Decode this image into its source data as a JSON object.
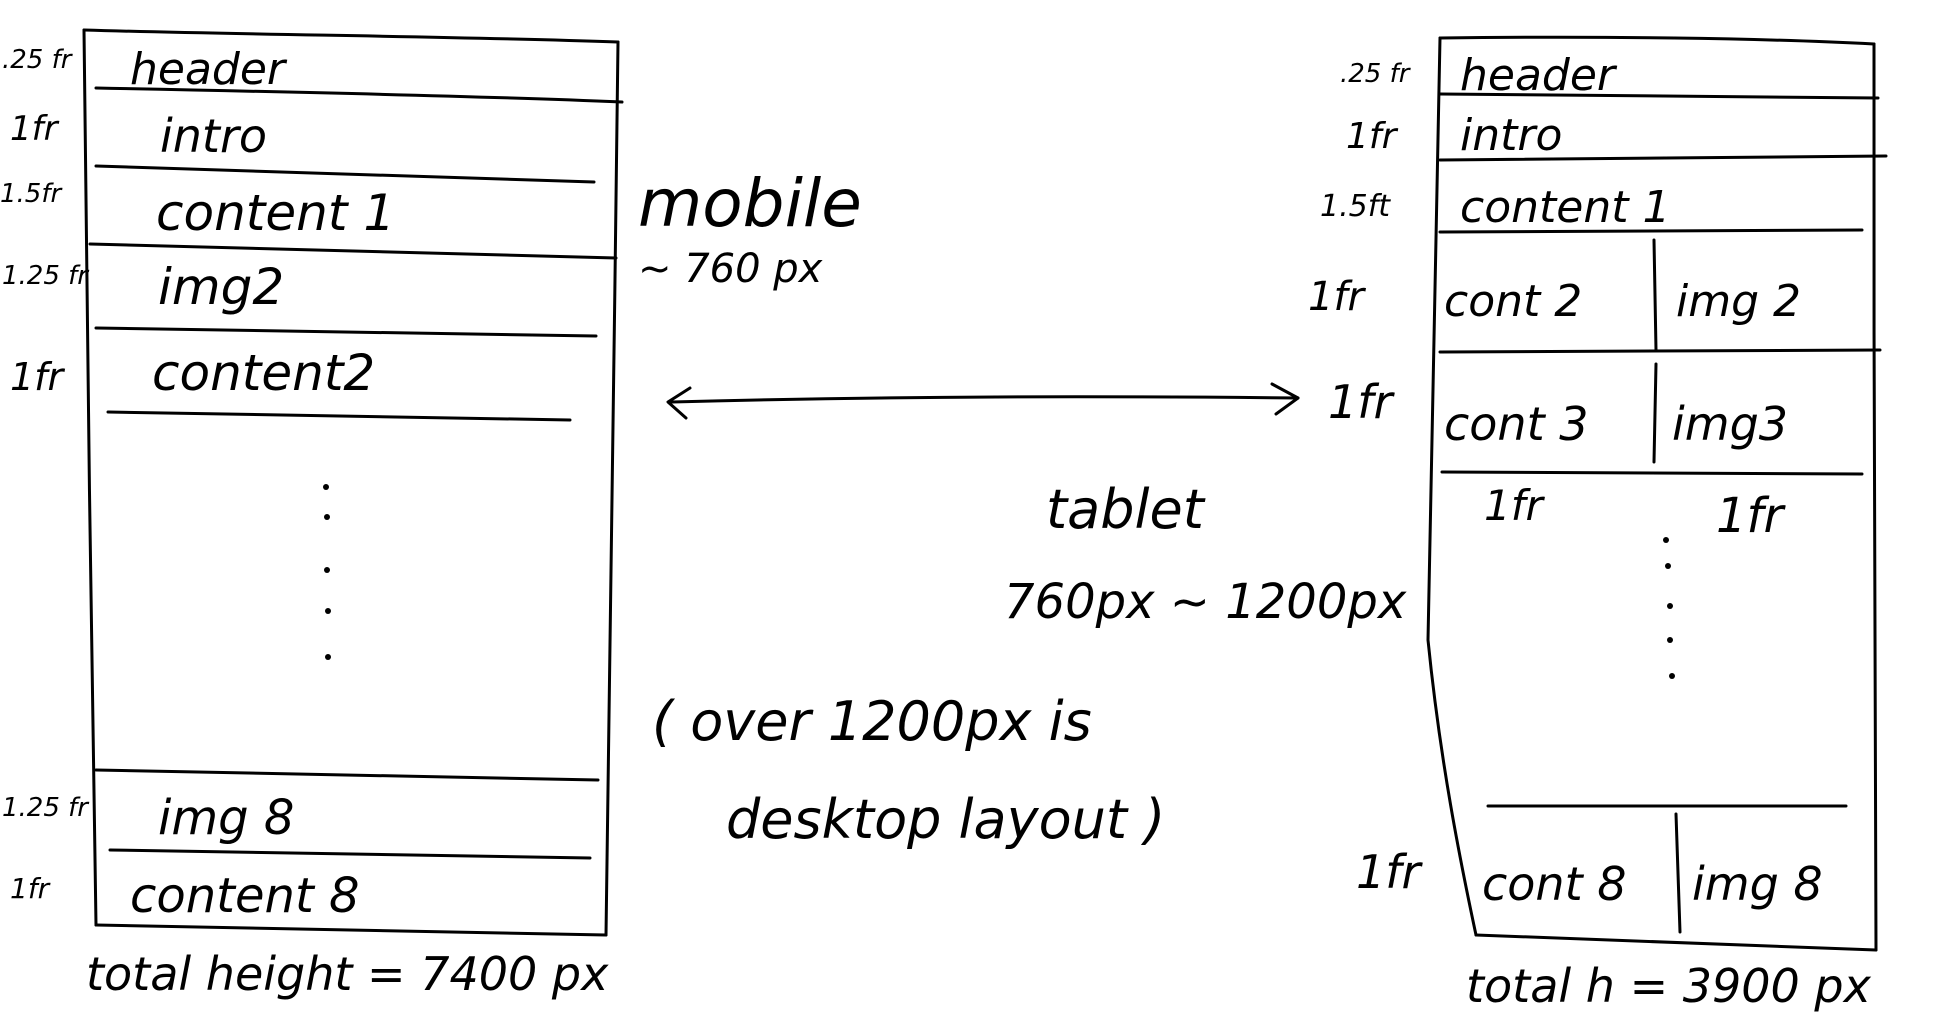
{
  "mobile": {
    "rows": [
      {
        "fr": ".25 fr",
        "label": "header"
      },
      {
        "fr": "1fr",
        "label": "intro"
      },
      {
        "fr": "1.5fr",
        "label": "content 1"
      },
      {
        "fr": "1.25 fr",
        "label": "img2"
      },
      {
        "fr": "1fr",
        "label": "content2"
      },
      {
        "fr": "1.25 fr",
        "label": "img 8"
      },
      {
        "fr": "1fr",
        "label": "content 8"
      }
    ],
    "title": "mobile",
    "width_note": "~ 760 px",
    "total": "total height = 7400 px"
  },
  "tablet": {
    "rows": [
      {
        "fr": ".25 fr",
        "label": "header"
      },
      {
        "fr": "1fr",
        "label": "intro"
      },
      {
        "fr": "1.5ft",
        "label": "content 1"
      },
      {
        "fr": "1fr",
        "left": "cont 2",
        "right": "img 2"
      },
      {
        "fr": "1fr",
        "left": "cont 3",
        "right": "img3"
      },
      {
        "fr": "1fr",
        "left": "cont 8",
        "right": "img 8"
      }
    ],
    "col_fr_left": "1fr",
    "col_fr_right": "1fr",
    "title": "tablet",
    "range": "760px ~ 1200px",
    "total": "total h = 3900 px"
  },
  "note_line1": "( over 1200px is",
  "note_line2": "desktop layout )"
}
